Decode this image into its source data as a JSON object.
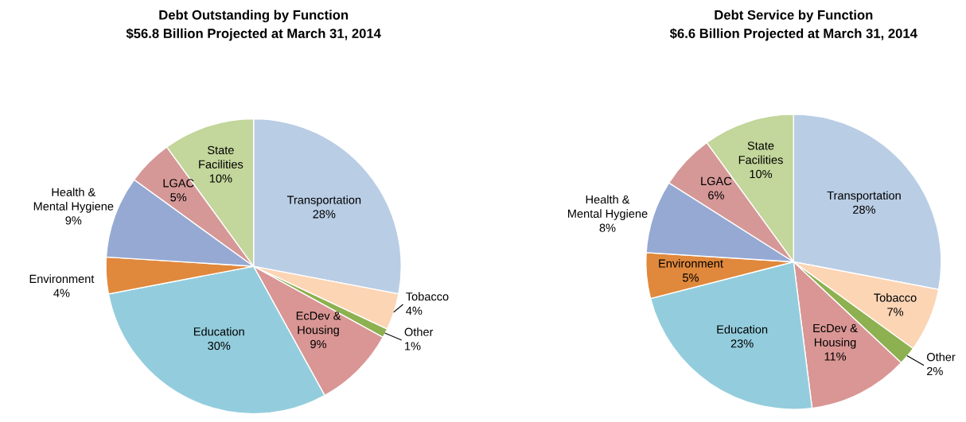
{
  "chart_data": [
    {
      "type": "pie",
      "title": "Debt Outstanding by Function\n$56.8 Billion Projected at March 31, 2014",
      "categories": [
        "Transportation",
        "Tobacco",
        "Other",
        "EcDev &\nHousing",
        "Education",
        "Environment",
        "Health &\nMental Hygiene",
        "LGAC",
        "State\nFacilities"
      ],
      "values": [
        28,
        4,
        1,
        9,
        30,
        4,
        9,
        5,
        10
      ],
      "value_labels": [
        "28%",
        "4%",
        "1%",
        "9%",
        "30%",
        "4%",
        "9%",
        "5%",
        "10%"
      ],
      "colors": [
        "#b9cde5",
        "#fcd5b5",
        "#8db050",
        "#d99694",
        "#93cddd",
        "#e0883c",
        "#95a9d3",
        "#d59897",
        "#c3d69b"
      ]
    },
    {
      "type": "pie",
      "title": "Debt Service by Function\n$6.6 Billion Projected at March 31, 2014",
      "categories": [
        "Transportation",
        "Tobacco",
        "Other",
        "EcDev &\nHousing",
        "Education",
        "Environment",
        "Health &\nMental Hygiene",
        "LGAC",
        "State\nFacilities"
      ],
      "values": [
        28,
        7,
        2,
        11,
        23,
        5,
        8,
        6,
        10
      ],
      "value_labels": [
        "28%",
        "7%",
        "2%",
        "11%",
        "23%",
        "5%",
        "8%",
        "6%",
        "10%"
      ],
      "colors": [
        "#b9cde5",
        "#fcd5b5",
        "#8db050",
        "#d99694",
        "#93cddd",
        "#e0883c",
        "#95a9d3",
        "#d59897",
        "#c3d69b"
      ]
    }
  ]
}
